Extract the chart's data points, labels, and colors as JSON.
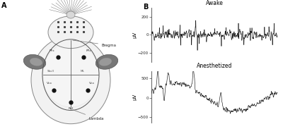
{
  "panel_a_label": "A",
  "panel_b_label": "B",
  "awake_title": "Awake",
  "anesthetized_title": "Anesthetized",
  "awake_ylim": [
    -300,
    300
  ],
  "awake_yticks": [
    -200,
    0,
    200
  ],
  "anest_ylim": [
    -650,
    700
  ],
  "anest_yticks": [
    -500,
    0,
    500
  ],
  "ylabel": "μV",
  "bg_color": "#ffffff",
  "line_color": "#1a1a1a",
  "bregma_label": "Bregma",
  "lambda_label": "Lambda",
  "skull_label": "Skull",
  "ml_label": "ML",
  "vcx_label_l": "Vcx",
  "vcx_label_r": "Vcx",
  "pfx_label_l": "PFx",
  "pfx_label_r": "PFx",
  "ref_label": "Ref",
  "body_color": "#f2f2f2",
  "body_edge": "#888888",
  "ear_color": "#666666",
  "dot_color": "#111111",
  "label_color": "#333333",
  "whisker_color": "#777777"
}
